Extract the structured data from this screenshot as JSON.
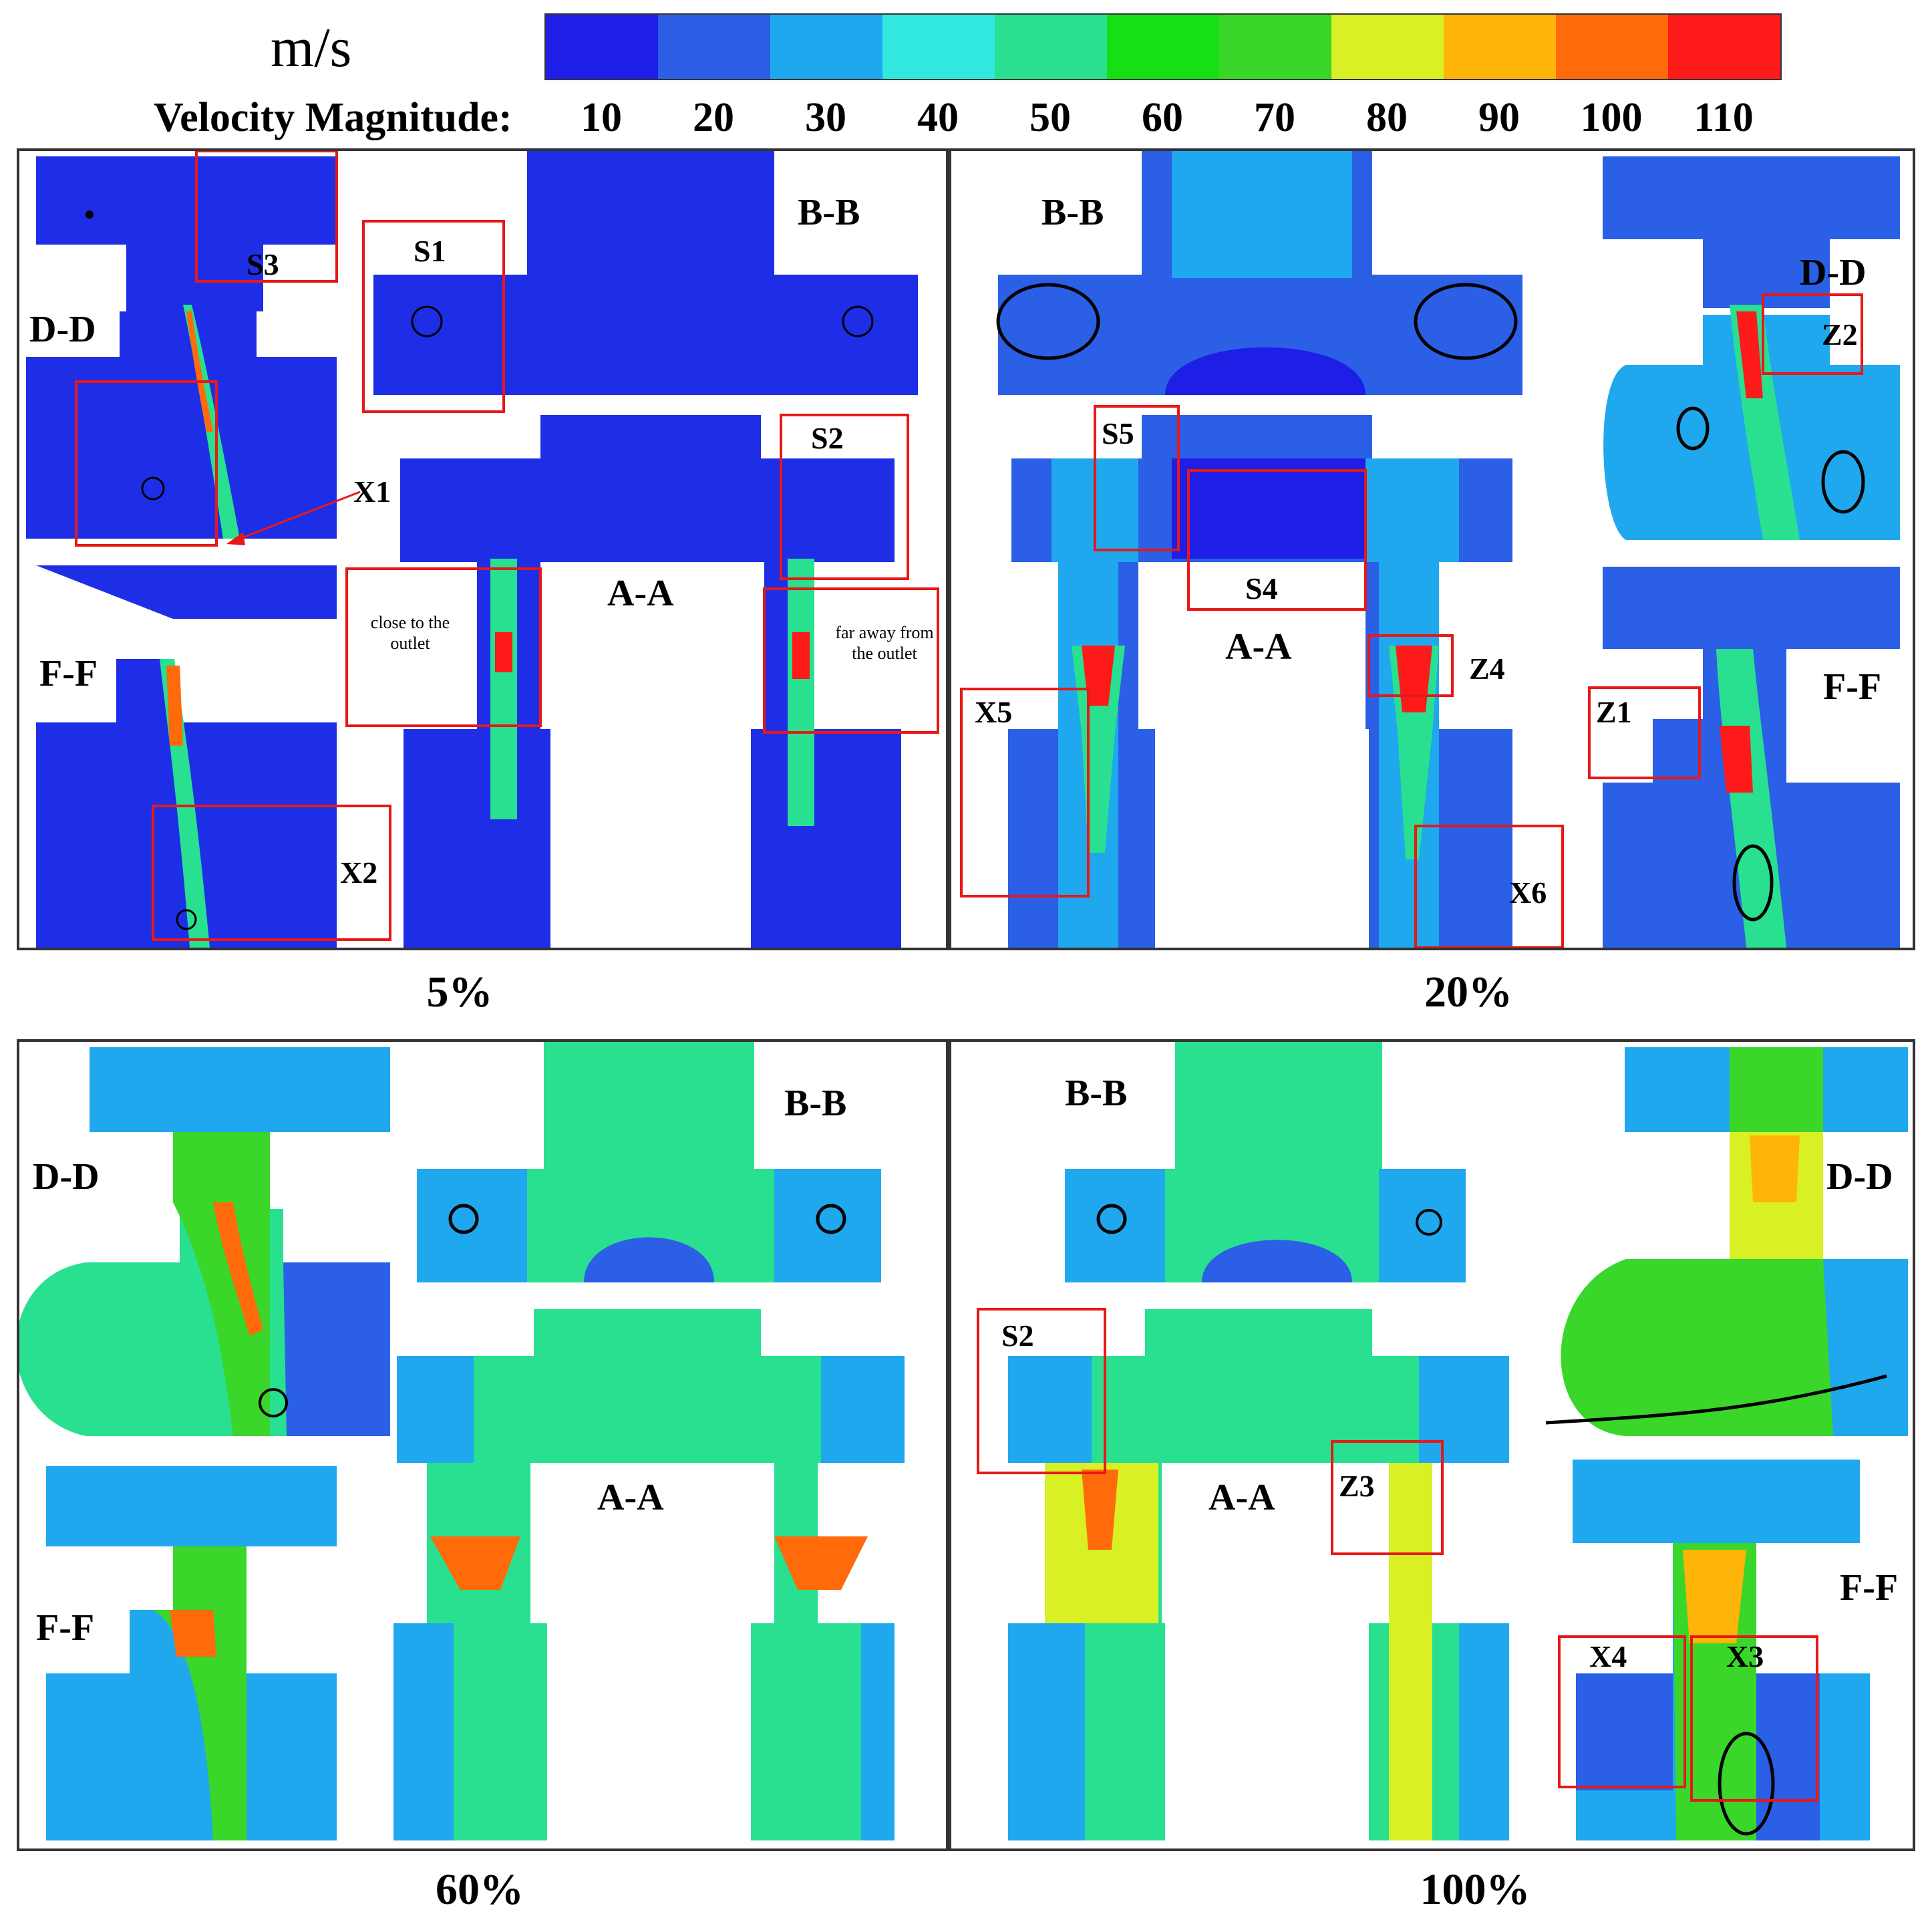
{
  "legend": {
    "unit": "m/s",
    "title": "Velocity Magnitude:",
    "ticks": [
      "10",
      "20",
      "30",
      "40",
      "50",
      "60",
      "70",
      "80",
      "90",
      "100",
      "110"
    ],
    "colors": [
      "#1e1ee6",
      "#2a5fe6",
      "#1fa8ee",
      "#30e8e0",
      "#28e090",
      "#14e014",
      "#3ad62a",
      "#d8f024",
      "#ffb40a",
      "#ff6a0a",
      "#ff1a1a"
    ]
  },
  "panels": [
    {
      "label": "5%",
      "regions": [
        {
          "id": "dd",
          "title": "D-D",
          "fill": "#1e2ee6"
        },
        {
          "id": "ff",
          "title": "F-F",
          "fill": "#1e2ee6"
        },
        {
          "id": "bb",
          "title": "B-B",
          "fill": "#1e2ee6"
        },
        {
          "id": "aa",
          "title": "A-A",
          "fill": "#1e2ee6"
        }
      ],
      "boxes": [
        "S3",
        "S1",
        "S2",
        "X1",
        "X2"
      ],
      "notes": [
        "close to the outlet",
        "far away from the outlet"
      ]
    },
    {
      "label": "20%",
      "regions": [
        {
          "id": "bb",
          "title": "B-B",
          "fill": "#1e2ee6"
        },
        {
          "id": "aa",
          "title": "A-A",
          "fill": "#2a5fe6"
        },
        {
          "id": "dd",
          "title": "D-D",
          "fill": "#2a5fe6"
        },
        {
          "id": "ff",
          "title": "F-F",
          "fill": "#2a5fe6"
        }
      ],
      "boxes": [
        "S5",
        "S4",
        "Z4",
        "X5",
        "X6",
        "Z2",
        "Z1"
      ]
    },
    {
      "label": "60%",
      "regions": [
        {
          "id": "dd",
          "title": "D-D",
          "fill": "#1fa8ee"
        },
        {
          "id": "ff",
          "title": "F-F",
          "fill": "#1fa8ee"
        },
        {
          "id": "bb",
          "title": "B-B",
          "fill": "#28e090"
        },
        {
          "id": "aa",
          "title": "A-A",
          "fill": "#28e090"
        }
      ]
    },
    {
      "label": "100%",
      "regions": [
        {
          "id": "bb",
          "title": "B-B",
          "fill": "#28e090"
        },
        {
          "id": "aa",
          "title": "A-A",
          "fill": "#28e090"
        },
        {
          "id": "dd",
          "title": "D-D",
          "fill": "#3ad62a"
        },
        {
          "id": "ff",
          "title": "F-F",
          "fill": "#1fa8ee"
        }
      ],
      "boxes": [
        "S2",
        "Z3",
        "X4",
        "X3"
      ]
    }
  ]
}
